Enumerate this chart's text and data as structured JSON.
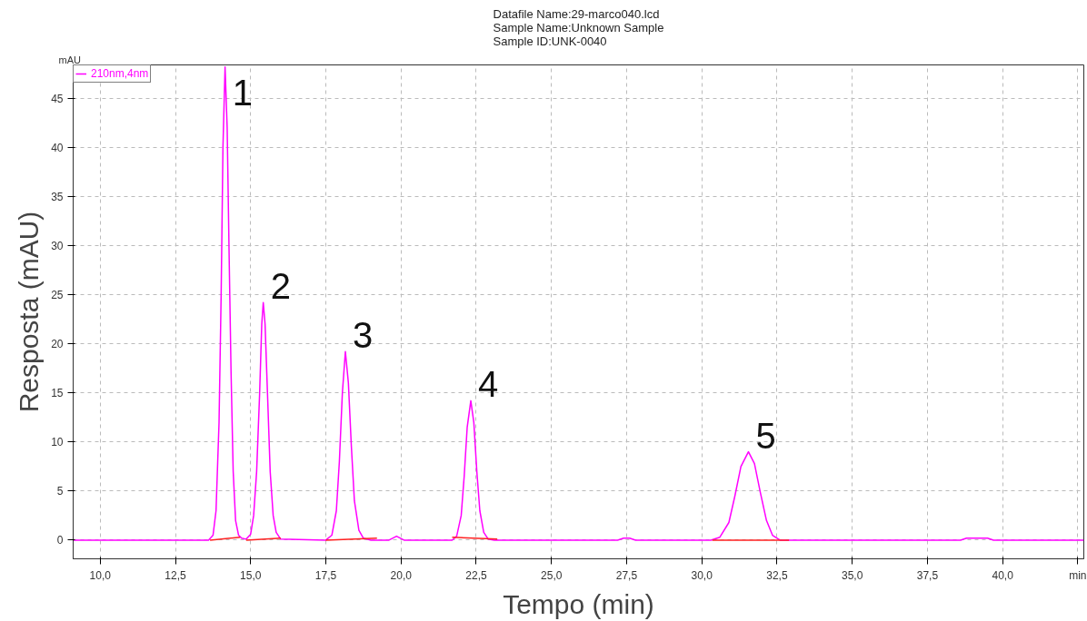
{
  "chart_data": {
    "type": "line",
    "title": "Datafile Name:29-marco040.lcd\nSample Name:Unknown Sample\nSample ID:UNK-0040",
    "xlabel": "Tempo (min)",
    "ylabel": "Resposta (mAU)",
    "xlim": [
      9.1,
      42.7
    ],
    "ylim": [
      -1.9,
      48.4
    ],
    "xticks": [
      {
        "value": 10,
        "label": "10,0"
      },
      {
        "value": 12.5,
        "label": "12,5"
      },
      {
        "value": 15,
        "label": "15,0"
      },
      {
        "value": 17.5,
        "label": "17,5"
      },
      {
        "value": 20,
        "label": "20,0"
      },
      {
        "value": 22.5,
        "label": "22,5"
      },
      {
        "value": 25,
        "label": "25,0"
      },
      {
        "value": 27.5,
        "label": "27,5"
      },
      {
        "value": 30,
        "label": "30,0"
      },
      {
        "value": 32.5,
        "label": "32,5"
      },
      {
        "value": 35,
        "label": "35,0"
      },
      {
        "value": 37.5,
        "label": "37,5"
      },
      {
        "value": 40,
        "label": "40,0"
      },
      {
        "value": 42.5,
        "label": "min"
      }
    ],
    "yticks": [
      0,
      5,
      10,
      15,
      20,
      25,
      30,
      35,
      40,
      45
    ],
    "grid": true,
    "legend": "top left",
    "marker": "none",
    "line_style": "solid",
    "series": [
      {
        "name": "210nm,4nm",
        "color": "#ff00ff",
        "x": [
          9.1,
          13.6,
          13.75,
          13.85,
          13.95,
          14.02,
          14.08,
          14.15,
          14.22,
          14.28,
          14.35,
          14.42,
          14.5,
          14.6,
          14.7,
          14.85,
          15.0,
          15.1,
          15.2,
          15.3,
          15.37,
          15.42,
          15.48,
          15.56,
          15.65,
          15.75,
          15.85,
          16.0,
          17.5,
          17.7,
          17.85,
          17.95,
          18.05,
          18.15,
          18.25,
          18.35,
          18.45,
          18.6,
          18.75,
          19.0,
          19.6,
          19.85,
          20.1,
          21.7,
          21.85,
          22.0,
          22.1,
          22.2,
          22.32,
          22.42,
          22.52,
          22.62,
          22.75,
          22.9,
          23.1,
          27.2,
          27.4,
          27.6,
          27.8,
          30.3,
          30.6,
          30.9,
          31.1,
          31.3,
          31.55,
          31.75,
          31.95,
          32.15,
          32.35,
          32.6,
          38.6,
          38.8,
          39.5,
          39.7,
          42.7
        ],
        "values": [
          0,
          0,
          0.5,
          3,
          12,
          25,
          40,
          48.2,
          42,
          30,
          17,
          7,
          2,
          0.5,
          0.2,
          0.1,
          0.6,
          2.5,
          7,
          15,
          22,
          24.2,
          22,
          15,
          7,
          2.5,
          0.8,
          0.1,
          0,
          0.5,
          3,
          8,
          15,
          19.2,
          16,
          9.5,
          4,
          1,
          0.2,
          0,
          0,
          0.4,
          0,
          0,
          0.4,
          2.5,
          6.5,
          11.5,
          14.2,
          12,
          7,
          3,
          0.8,
          0.1,
          0,
          0,
          0.2,
          0.2,
          0,
          0,
          0.3,
          1.8,
          4.5,
          7.5,
          9.0,
          7.8,
          4.8,
          2,
          0.5,
          0,
          0,
          0.2,
          0.2,
          0,
          0
        ]
      },
      {
        "color": "#ff2020",
        "x": [
          13.65,
          14.65,
          14.66,
          14.85,
          16.0,
          16.01,
          17.5,
          19.2,
          19.21,
          21.7,
          23.2,
          23.21,
          30.35,
          32.9
        ],
        "values": [
          0,
          0.3,
          null,
          0,
          0.2,
          null,
          0,
          0.2,
          null,
          0.3,
          0.1,
          null,
          0,
          0
        ]
      }
    ],
    "annotations": [
      "mAU",
      {
        "text": "1",
        "x": 14.15,
        "y": 48.2
      },
      {
        "text": "2",
        "x": 15.42,
        "y": 24.2
      },
      {
        "text": "3",
        "x": 18.15,
        "y": 19.2
      },
      {
        "text": "4",
        "x": 22.32,
        "y": 14.2
      },
      {
        "text": "5",
        "x": 31.55,
        "y": 9.0
      }
    ]
  }
}
